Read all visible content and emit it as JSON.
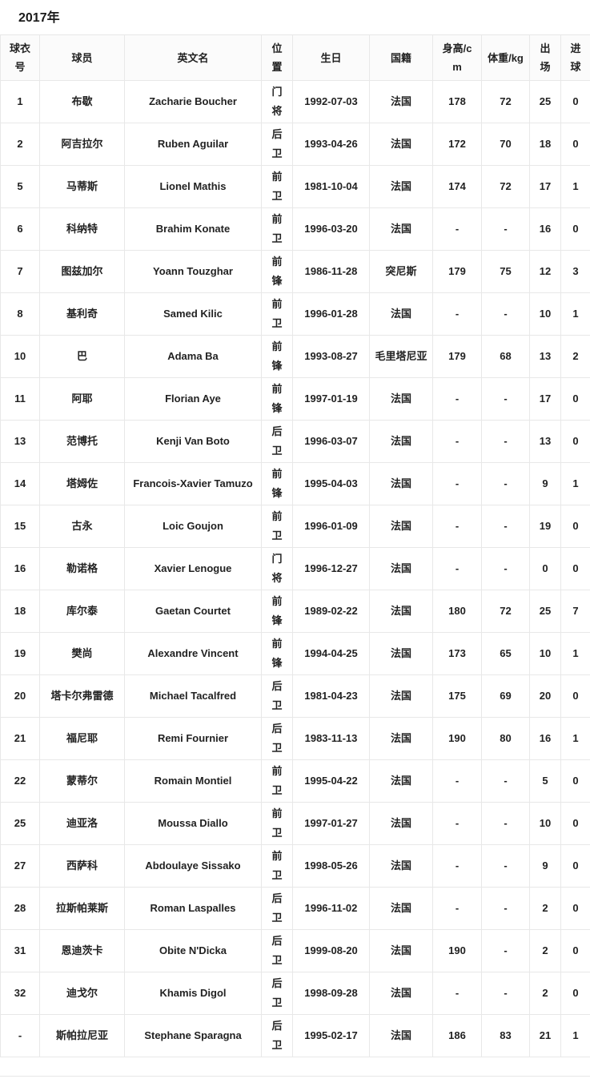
{
  "page": {
    "title": "2017年"
  },
  "table": {
    "columns": [
      {
        "key": "no",
        "label": "球衣号"
      },
      {
        "key": "player",
        "label": "球员"
      },
      {
        "key": "name_en",
        "label": "英文名"
      },
      {
        "key": "position",
        "label": "位置"
      },
      {
        "key": "birthday",
        "label": "生日"
      },
      {
        "key": "nationality",
        "label": "国籍"
      },
      {
        "key": "height",
        "label": "身高/cm"
      },
      {
        "key": "weight",
        "label": "体重/kg"
      },
      {
        "key": "apps",
        "label": "出场"
      },
      {
        "key": "goals",
        "label": "进球"
      }
    ],
    "rows": [
      {
        "no": "1",
        "player": "布歇",
        "name_en": "Zacharie Boucher",
        "position": "门将",
        "birthday": "1992-07-03",
        "nationality": "法国",
        "height": "178",
        "weight": "72",
        "apps": "25",
        "goals": "0"
      },
      {
        "no": "2",
        "player": "阿吉拉尔",
        "name_en": "Ruben Aguilar",
        "position": "后卫",
        "birthday": "1993-04-26",
        "nationality": "法国",
        "height": "172",
        "weight": "70",
        "apps": "18",
        "goals": "0"
      },
      {
        "no": "5",
        "player": "马蒂斯",
        "name_en": "Lionel Mathis",
        "position": "前卫",
        "birthday": "1981-10-04",
        "nationality": "法国",
        "height": "174",
        "weight": "72",
        "apps": "17",
        "goals": "1"
      },
      {
        "no": "6",
        "player": "科纳特",
        "name_en": "Brahim Konate",
        "position": "前卫",
        "birthday": "1996-03-20",
        "nationality": "法国",
        "height": "-",
        "weight": "-",
        "apps": "16",
        "goals": "0"
      },
      {
        "no": "7",
        "player": "图兹加尔",
        "name_en": "Yoann Touzghar",
        "position": "前锋",
        "birthday": "1986-11-28",
        "nationality": "突尼斯",
        "height": "179",
        "weight": "75",
        "apps": "12",
        "goals": "3"
      },
      {
        "no": "8",
        "player": "基利奇",
        "name_en": "Samed Kilic",
        "position": "前卫",
        "birthday": "1996-01-28",
        "nationality": "法国",
        "height": "-",
        "weight": "-",
        "apps": "10",
        "goals": "1"
      },
      {
        "no": "10",
        "player": "巴",
        "name_en": "Adama Ba",
        "position": "前锋",
        "birthday": "1993-08-27",
        "nationality": "毛里塔尼亚",
        "height": "179",
        "weight": "68",
        "apps": "13",
        "goals": "2"
      },
      {
        "no": "11",
        "player": "阿耶",
        "name_en": "Florian Aye",
        "position": "前锋",
        "birthday": "1997-01-19",
        "nationality": "法国",
        "height": "-",
        "weight": "-",
        "apps": "17",
        "goals": "0"
      },
      {
        "no": "13",
        "player": "范博托",
        "name_en": "Kenji Van Boto",
        "position": "后卫",
        "birthday": "1996-03-07",
        "nationality": "法国",
        "height": "-",
        "weight": "-",
        "apps": "13",
        "goals": "0"
      },
      {
        "no": "14",
        "player": "塔姆佐",
        "name_en": "Francois-Xavier Tamuzo",
        "position": "前锋",
        "birthday": "1995-04-03",
        "nationality": "法国",
        "height": "-",
        "weight": "-",
        "apps": "9",
        "goals": "1"
      },
      {
        "no": "15",
        "player": "古永",
        "name_en": "Loic Goujon",
        "position": "前卫",
        "birthday": "1996-01-09",
        "nationality": "法国",
        "height": "-",
        "weight": "-",
        "apps": "19",
        "goals": "0"
      },
      {
        "no": "16",
        "player": "勒诺格",
        "name_en": "Xavier Lenogue",
        "position": "门将",
        "birthday": "1996-12-27",
        "nationality": "法国",
        "height": "-",
        "weight": "-",
        "apps": "0",
        "goals": "0"
      },
      {
        "no": "18",
        "player": "库尔泰",
        "name_en": "Gaetan Courtet",
        "position": "前锋",
        "birthday": "1989-02-22",
        "nationality": "法国",
        "height": "180",
        "weight": "72",
        "apps": "25",
        "goals": "7"
      },
      {
        "no": "19",
        "player": "樊尚",
        "name_en": "Alexandre Vincent",
        "position": "前锋",
        "birthday": "1994-04-25",
        "nationality": "法国",
        "height": "173",
        "weight": "65",
        "apps": "10",
        "goals": "1"
      },
      {
        "no": "20",
        "player": "塔卡尔弗雷德",
        "name_en": "Michael Tacalfred",
        "position": "后卫",
        "birthday": "1981-04-23",
        "nationality": "法国",
        "height": "175",
        "weight": "69",
        "apps": "20",
        "goals": "0"
      },
      {
        "no": "21",
        "player": "福尼耶",
        "name_en": "Remi Fournier",
        "position": "后卫",
        "birthday": "1983-11-13",
        "nationality": "法国",
        "height": "190",
        "weight": "80",
        "apps": "16",
        "goals": "1"
      },
      {
        "no": "22",
        "player": "蒙蒂尔",
        "name_en": "Romain Montiel",
        "position": "前卫",
        "birthday": "1995-04-22",
        "nationality": "法国",
        "height": "-",
        "weight": "-",
        "apps": "5",
        "goals": "0"
      },
      {
        "no": "25",
        "player": "迪亚洛",
        "name_en": "Moussa Diallo",
        "position": "前卫",
        "birthday": "1997-01-27",
        "nationality": "法国",
        "height": "-",
        "weight": "-",
        "apps": "10",
        "goals": "0"
      },
      {
        "no": "27",
        "player": "西萨科",
        "name_en": "Abdoulaye Sissako",
        "position": "前卫",
        "birthday": "1998-05-26",
        "nationality": "法国",
        "height": "-",
        "weight": "-",
        "apps": "9",
        "goals": "0"
      },
      {
        "no": "28",
        "player": "拉斯帕莱斯",
        "name_en": "Roman Laspalles",
        "position": "后卫",
        "birthday": "1996-11-02",
        "nationality": "法国",
        "height": "-",
        "weight": "-",
        "apps": "2",
        "goals": "0"
      },
      {
        "no": "31",
        "player": "恩迪茨卡",
        "name_en": "Obite N'Dicka",
        "position": "后卫",
        "birthday": "1999-08-20",
        "nationality": "法国",
        "height": "190",
        "weight": "-",
        "apps": "2",
        "goals": "0"
      },
      {
        "no": "32",
        "player": "迪戈尔",
        "name_en": "Khamis Digol",
        "position": "后卫",
        "birthday": "1998-09-28",
        "nationality": "法国",
        "height": "-",
        "weight": "-",
        "apps": "2",
        "goals": "0"
      },
      {
        "no": "-",
        "player": "斯帕拉尼亚",
        "name_en": "Stephane Sparagna",
        "position": "后卫",
        "birthday": "1995-02-17",
        "nationality": "法国",
        "height": "186",
        "weight": "83",
        "apps": "21",
        "goals": "1"
      }
    ]
  }
}
